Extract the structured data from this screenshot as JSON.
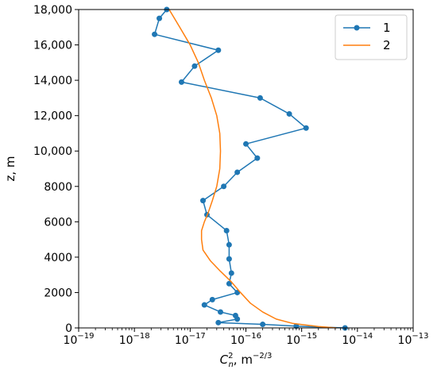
{
  "chart_data": {
    "type": "line",
    "xscale": "log",
    "xlim": [
      1e-19,
      1e-13
    ],
    "ylim": [
      0,
      18000
    ],
    "xlabel": "C_n^2, m^-2/3",
    "xlabel_parts": {
      "base": "C",
      "sup": "2",
      "sub": "n",
      "rest": ", m",
      "unit_sup": "−2/3"
    },
    "ylabel": "z, m",
    "x_ticks": [
      {
        "value": 1e-19,
        "base": "10",
        "exp": "−19"
      },
      {
        "value": 1e-18,
        "base": "10",
        "exp": "−18"
      },
      {
        "value": 1e-17,
        "base": "10",
        "exp": "−17"
      },
      {
        "value": 1e-16,
        "base": "10",
        "exp": "−16"
      },
      {
        "value": 1e-15,
        "base": "10",
        "exp": "−15"
      },
      {
        "value": 1e-14,
        "base": "10",
        "exp": "−14"
      },
      {
        "value": 1e-13,
        "base": "10",
        "exp": "−13"
      }
    ],
    "y_ticks": [
      {
        "value": 0,
        "label": "0"
      },
      {
        "value": 2000,
        "label": "2000"
      },
      {
        "value": 4000,
        "label": "4000"
      },
      {
        "value": 6000,
        "label": "6000"
      },
      {
        "value": 8000,
        "label": "8000"
      },
      {
        "value": 10000,
        "label": "10,000"
      },
      {
        "value": 12000,
        "label": "12,000"
      },
      {
        "value": 14000,
        "label": "14,000"
      },
      {
        "value": 16000,
        "label": "16,000"
      },
      {
        "value": 18000,
        "label": "18,000"
      }
    ],
    "grid": false,
    "legend_position": "top-right",
    "series": [
      {
        "name": "1",
        "color": "#1f77b4",
        "marker": "circle",
        "points": [
          {
            "x": 6e-15,
            "y": 0
          },
          {
            "x": 8e-16,
            "y": 100
          },
          {
            "x": 2e-16,
            "y": 200
          },
          {
            "x": 3.2e-17,
            "y": 300
          },
          {
            "x": 7e-17,
            "y": 500
          },
          {
            "x": 6.5e-17,
            "y": 700
          },
          {
            "x": 3.5e-17,
            "y": 900
          },
          {
            "x": 1.8e-17,
            "y": 1300
          },
          {
            "x": 2.5e-17,
            "y": 1600
          },
          {
            "x": 7e-17,
            "y": 2000
          },
          {
            "x": 5e-17,
            "y": 2500
          },
          {
            "x": 5.5e-17,
            "y": 3100
          },
          {
            "x": 5e-17,
            "y": 3900
          },
          {
            "x": 5e-17,
            "y": 4700
          },
          {
            "x": 4.5e-17,
            "y": 5500
          },
          {
            "x": 2e-17,
            "y": 6400
          },
          {
            "x": 1.7e-17,
            "y": 7200
          },
          {
            "x": 4e-17,
            "y": 8000
          },
          {
            "x": 7e-17,
            "y": 8800
          },
          {
            "x": 1.6e-16,
            "y": 9600
          },
          {
            "x": 1e-16,
            "y": 10400
          },
          {
            "x": 1.2e-15,
            "y": 11300
          },
          {
            "x": 6e-16,
            "y": 12100
          },
          {
            "x": 1.8e-16,
            "y": 13000
          },
          {
            "x": 7e-18,
            "y": 13900
          },
          {
            "x": 1.2e-17,
            "y": 14800
          },
          {
            "x": 3.2e-17,
            "y": 15700
          },
          {
            "x": 2.3e-18,
            "y": 16600
          },
          {
            "x": 2.8e-18,
            "y": 17500
          },
          {
            "x": 3.8e-18,
            "y": 18000
          }
        ]
      },
      {
        "name": "2",
        "color": "#ff7f0e",
        "marker": "none",
        "points": [
          {
            "x": 4.2e-15,
            "y": 0
          },
          {
            "x": 2e-15,
            "y": 80
          },
          {
            "x": 7e-16,
            "y": 250
          },
          {
            "x": 3.5e-16,
            "y": 500
          },
          {
            "x": 2e-16,
            "y": 900
          },
          {
            "x": 1.2e-16,
            "y": 1400
          },
          {
            "x": 8e-17,
            "y": 2000
          },
          {
            "x": 5.5e-17,
            "y": 2600
          },
          {
            "x": 3.5e-17,
            "y": 3200
          },
          {
            "x": 2.3e-17,
            "y": 3800
          },
          {
            "x": 1.7e-17,
            "y": 4400
          },
          {
            "x": 1.6e-17,
            "y": 5000
          },
          {
            "x": 1.6e-17,
            "y": 5500
          },
          {
            "x": 1.8e-17,
            "y": 6000
          },
          {
            "x": 2.1e-17,
            "y": 6500
          },
          {
            "x": 2.5e-17,
            "y": 7200
          },
          {
            "x": 3e-17,
            "y": 8000
          },
          {
            "x": 3.4e-17,
            "y": 9000
          },
          {
            "x": 3.5e-17,
            "y": 10000
          },
          {
            "x": 3.4e-17,
            "y": 11000
          },
          {
            "x": 3e-17,
            "y": 12000
          },
          {
            "x": 2.4e-17,
            "y": 13000
          },
          {
            "x": 1.8e-17,
            "y": 14000
          },
          {
            "x": 1.4e-17,
            "y": 15000
          },
          {
            "x": 1e-17,
            "y": 16000
          },
          {
            "x": 6.5e-18,
            "y": 17000
          },
          {
            "x": 4.2e-18,
            "y": 18000
          }
        ]
      }
    ]
  }
}
